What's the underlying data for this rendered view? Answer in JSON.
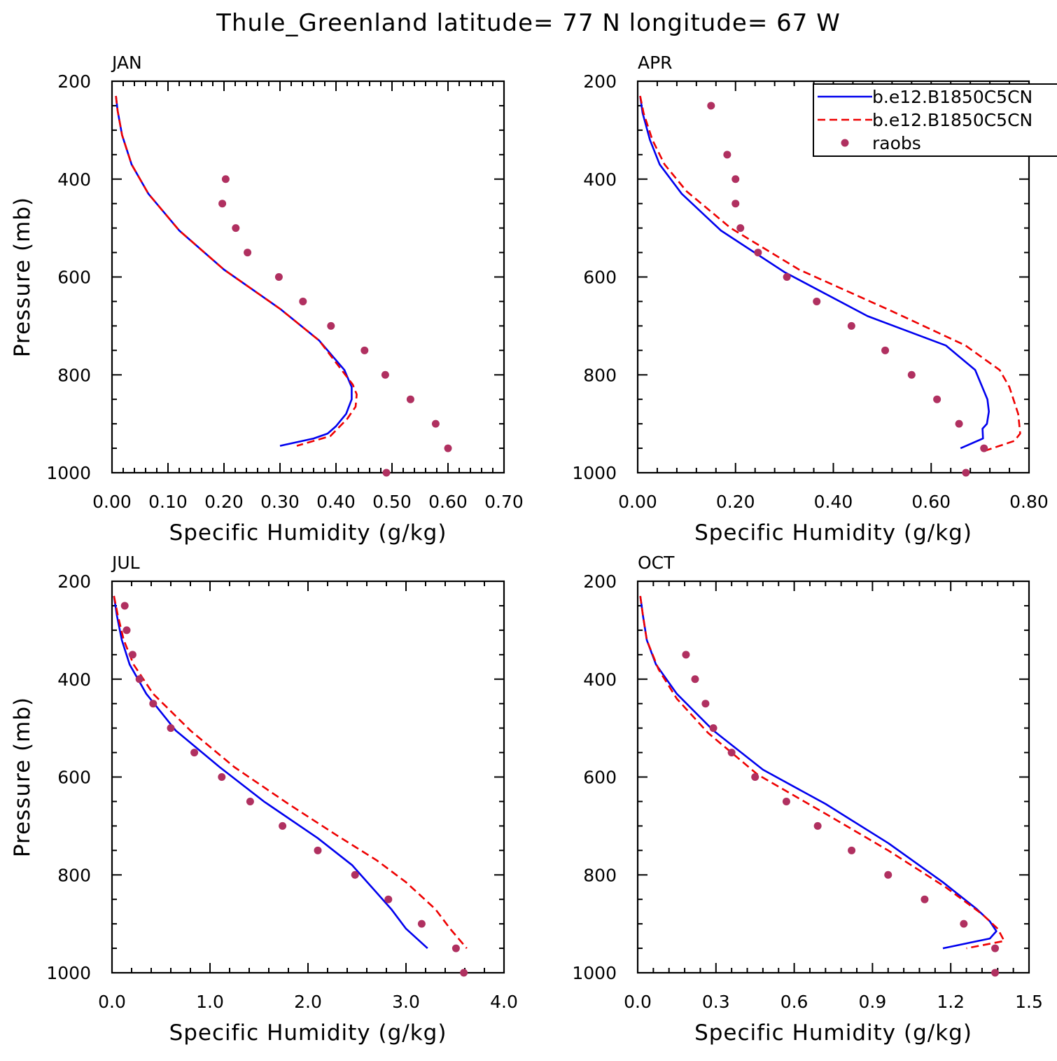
{
  "title": "Thule_Greenland  latitude= 77 N longitude= 67 W",
  "colors": {
    "model_a": "#0000ee",
    "model_b": "#ee0000",
    "raobs": "#b03060",
    "axis": "#000000"
  },
  "legend": [
    {
      "label": "b.e12.B1850C5CN",
      "style": "solid",
      "color": "#0000ee"
    },
    {
      "label": "b.e12.B1850C5CN",
      "style": "dashed",
      "color": "#ee0000"
    },
    {
      "label": "raobs",
      "style": "marker",
      "color": "#b03060"
    }
  ],
  "chart_data": [
    {
      "type": "line",
      "title": "JAN",
      "xlabel": "Specific Humidity (g/kg)",
      "ylabel": "Pressure (mb)",
      "xlim": [
        0,
        0.7
      ],
      "ylim": [
        200,
        1000
      ],
      "y_inverted": true,
      "xticks": [
        "0.00",
        "0.10",
        "0.20",
        "0.30",
        "0.40",
        "0.50",
        "0.60",
        "0.70"
      ],
      "yticks": [
        "200",
        "400",
        "600",
        "800",
        "1000"
      ],
      "legend": false,
      "series": [
        {
          "name": "b.e12.B1850C5CN",
          "style": "solid",
          "points": [
            [
              0.007,
              230
            ],
            [
              0.01,
              260
            ],
            [
              0.018,
              310
            ],
            [
              0.035,
              370
            ],
            [
              0.065,
              430
            ],
            [
              0.12,
              505
            ],
            [
              0.2,
              585
            ],
            [
              0.3,
              665
            ],
            [
              0.37,
              730
            ],
            [
              0.415,
              790
            ],
            [
              0.428,
              825
            ],
            [
              0.428,
              850
            ],
            [
              0.418,
              880
            ],
            [
              0.4,
              905
            ],
            [
              0.385,
              920
            ],
            [
              0.36,
              930
            ],
            [
              0.3,
              945
            ]
          ]
        },
        {
          "name": "b.e12.B1850C5CN",
          "style": "dashed",
          "points": [
            [
              0.007,
              230
            ],
            [
              0.01,
              260
            ],
            [
              0.018,
              310
            ],
            [
              0.035,
              370
            ],
            [
              0.065,
              430
            ],
            [
              0.12,
              505
            ],
            [
              0.2,
              585
            ],
            [
              0.3,
              665
            ],
            [
              0.37,
              730
            ],
            [
              0.41,
              790
            ],
            [
              0.43,
              820
            ],
            [
              0.437,
              840
            ],
            [
              0.435,
              865
            ],
            [
              0.42,
              890
            ],
            [
              0.39,
              925
            ],
            [
              0.33,
              945
            ]
          ]
        },
        {
          "name": "raobs",
          "style": "marker",
          "points": [
            [
              0.203,
              400
            ],
            [
              0.197,
              450
            ],
            [
              0.221,
              500
            ],
            [
              0.242,
              550
            ],
            [
              0.298,
              600
            ],
            [
              0.341,
              650
            ],
            [
              0.391,
              700
            ],
            [
              0.451,
              750
            ],
            [
              0.488,
              800
            ],
            [
              0.533,
              850
            ],
            [
              0.578,
              900
            ],
            [
              0.6,
              950
            ],
            [
              0.49,
              1000
            ]
          ]
        }
      ]
    },
    {
      "type": "line",
      "title": "APR",
      "xlabel": "Specific Humidity (g/kg)",
      "ylabel": "",
      "xlim": [
        0,
        0.8
      ],
      "ylim": [
        200,
        1000
      ],
      "y_inverted": true,
      "xticks": [
        "0.00",
        "0.20",
        "0.40",
        "0.60",
        "0.80"
      ],
      "yticks": [
        "200",
        "400",
        "600",
        "800",
        "1000"
      ],
      "legend": true,
      "series": [
        {
          "name": "b.e12.B1850C5CN",
          "style": "solid",
          "points": [
            [
              0.005,
              230
            ],
            [
              0.01,
              265
            ],
            [
              0.025,
              320
            ],
            [
              0.045,
              370
            ],
            [
              0.09,
              430
            ],
            [
              0.17,
              505
            ],
            [
              0.3,
              590
            ],
            [
              0.47,
              680
            ],
            [
              0.63,
              740
            ],
            [
              0.69,
              790
            ],
            [
              0.715,
              850
            ],
            [
              0.718,
              875
            ],
            [
              0.714,
              900
            ],
            [
              0.705,
              910
            ],
            [
              0.706,
              930
            ],
            [
              0.66,
              950
            ]
          ]
        },
        {
          "name": "b.e12.B1850C5CN",
          "style": "dashed",
          "points": [
            [
              0.005,
              230
            ],
            [
              0.012,
              265
            ],
            [
              0.03,
              320
            ],
            [
              0.055,
              370
            ],
            [
              0.1,
              425
            ],
            [
              0.19,
              500
            ],
            [
              0.33,
              585
            ],
            [
              0.52,
              670
            ],
            [
              0.67,
              740
            ],
            [
              0.74,
              790
            ],
            [
              0.76,
              825
            ],
            [
              0.778,
              880
            ],
            [
              0.782,
              920
            ],
            [
              0.77,
              935
            ],
            [
              0.71,
              955
            ]
          ]
        },
        {
          "name": "raobs",
          "style": "marker",
          "points": [
            [
              0.15,
              250
            ],
            [
              0.183,
              350
            ],
            [
              0.2,
              400
            ],
            [
              0.2,
              450
            ],
            [
              0.21,
              500
            ],
            [
              0.246,
              550
            ],
            [
              0.305,
              600
            ],
            [
              0.366,
              650
            ],
            [
              0.437,
              700
            ],
            [
              0.506,
              750
            ],
            [
              0.56,
              800
            ],
            [
              0.612,
              850
            ],
            [
              0.657,
              900
            ],
            [
              0.708,
              950
            ],
            [
              0.671,
              1000
            ]
          ]
        }
      ]
    },
    {
      "type": "line",
      "title": "JUL",
      "xlabel": "Specific Humidity (g/kg)",
      "ylabel": "Pressure (mb)",
      "xlim": [
        0,
        4.0
      ],
      "ylim": [
        200,
        1000
      ],
      "y_inverted": true,
      "xticks": [
        "0.0",
        "1.0",
        "2.0",
        "3.0",
        "4.0"
      ],
      "yticks": [
        "200",
        "400",
        "600",
        "800",
        "1000"
      ],
      "legend": false,
      "series": [
        {
          "name": "b.e12.B1850C5CN",
          "style": "solid",
          "points": [
            [
              0.02,
              230
            ],
            [
              0.05,
              270
            ],
            [
              0.1,
              320
            ],
            [
              0.18,
              370
            ],
            [
              0.35,
              430
            ],
            [
              0.65,
              505
            ],
            [
              1.1,
              580
            ],
            [
              1.55,
              650
            ],
            [
              2.1,
              725
            ],
            [
              2.45,
              780
            ],
            [
              2.65,
              825
            ],
            [
              2.85,
              870
            ],
            [
              3.0,
              910
            ],
            [
              3.22,
              950
            ]
          ]
        },
        {
          "name": "b.e12.B1850C5CN",
          "style": "dashed",
          "points": [
            [
              0.02,
              230
            ],
            [
              0.06,
              270
            ],
            [
              0.12,
              320
            ],
            [
              0.22,
              370
            ],
            [
              0.42,
              430
            ],
            [
              0.8,
              505
            ],
            [
              1.25,
              580
            ],
            [
              1.8,
              655
            ],
            [
              2.3,
              720
            ],
            [
              2.7,
              770
            ],
            [
              3.0,
              815
            ],
            [
              3.3,
              870
            ],
            [
              3.45,
              910
            ],
            [
              3.62,
              950
            ]
          ]
        },
        {
          "name": "raobs",
          "style": "marker",
          "points": [
            [
              0.13,
              250
            ],
            [
              0.15,
              300
            ],
            [
              0.21,
              350
            ],
            [
              0.28,
              400
            ],
            [
              0.42,
              450
            ],
            [
              0.6,
              500
            ],
            [
              0.84,
              550
            ],
            [
              1.12,
              600
            ],
            [
              1.41,
              650
            ],
            [
              1.74,
              700
            ],
            [
              2.1,
              750
            ],
            [
              2.48,
              800
            ],
            [
              2.82,
              850
            ],
            [
              3.16,
              900
            ],
            [
              3.51,
              950
            ],
            [
              3.59,
              1000
            ]
          ]
        }
      ]
    },
    {
      "type": "line",
      "title": "OCT",
      "xlabel": "Specific Humidity (g/kg)",
      "ylabel": "",
      "xlim": [
        0,
        1.5
      ],
      "ylim": [
        200,
        1000
      ],
      "y_inverted": true,
      "xticks": [
        "0.0",
        "0.3",
        "0.6",
        "0.9",
        "1.2",
        "1.5"
      ],
      "yticks": [
        "200",
        "400",
        "600",
        "800",
        "1000"
      ],
      "legend": false,
      "series": [
        {
          "name": "b.e12.B1850C5CN",
          "style": "solid",
          "points": [
            [
              0.01,
              230
            ],
            [
              0.02,
              270
            ],
            [
              0.035,
              320
            ],
            [
              0.07,
              370
            ],
            [
              0.15,
              430
            ],
            [
              0.29,
              505
            ],
            [
              0.48,
              585
            ],
            [
              0.72,
              655
            ],
            [
              0.96,
              735
            ],
            [
              1.17,
              815
            ],
            [
              1.3,
              870
            ],
            [
              1.35,
              895
            ],
            [
              1.375,
              915
            ],
            [
              1.35,
              930
            ],
            [
              1.17,
              950
            ]
          ]
        },
        {
          "name": "b.e12.B1850C5CN",
          "style": "dashed",
          "points": [
            [
              0.01,
              230
            ],
            [
              0.02,
              270
            ],
            [
              0.035,
              320
            ],
            [
              0.08,
              380
            ],
            [
              0.15,
              440
            ],
            [
              0.27,
              510
            ],
            [
              0.46,
              595
            ],
            [
              0.72,
              675
            ],
            [
              0.96,
              750
            ],
            [
              1.18,
              825
            ],
            [
              1.32,
              880
            ],
            [
              1.38,
              910
            ],
            [
              1.405,
              935
            ],
            [
              1.26,
              950
            ]
          ]
        },
        {
          "name": "raobs",
          "style": "marker",
          "points": [
            [
              0.185,
              350
            ],
            [
              0.22,
              400
            ],
            [
              0.26,
              450
            ],
            [
              0.29,
              500
            ],
            [
              0.36,
              550
            ],
            [
              0.45,
              600
            ],
            [
              0.57,
              650
            ],
            [
              0.69,
              700
            ],
            [
              0.82,
              750
            ],
            [
              0.96,
              800
            ],
            [
              1.1,
              850
            ],
            [
              1.25,
              900
            ],
            [
              1.37,
              950
            ],
            [
              1.37,
              1000
            ]
          ]
        }
      ]
    }
  ]
}
